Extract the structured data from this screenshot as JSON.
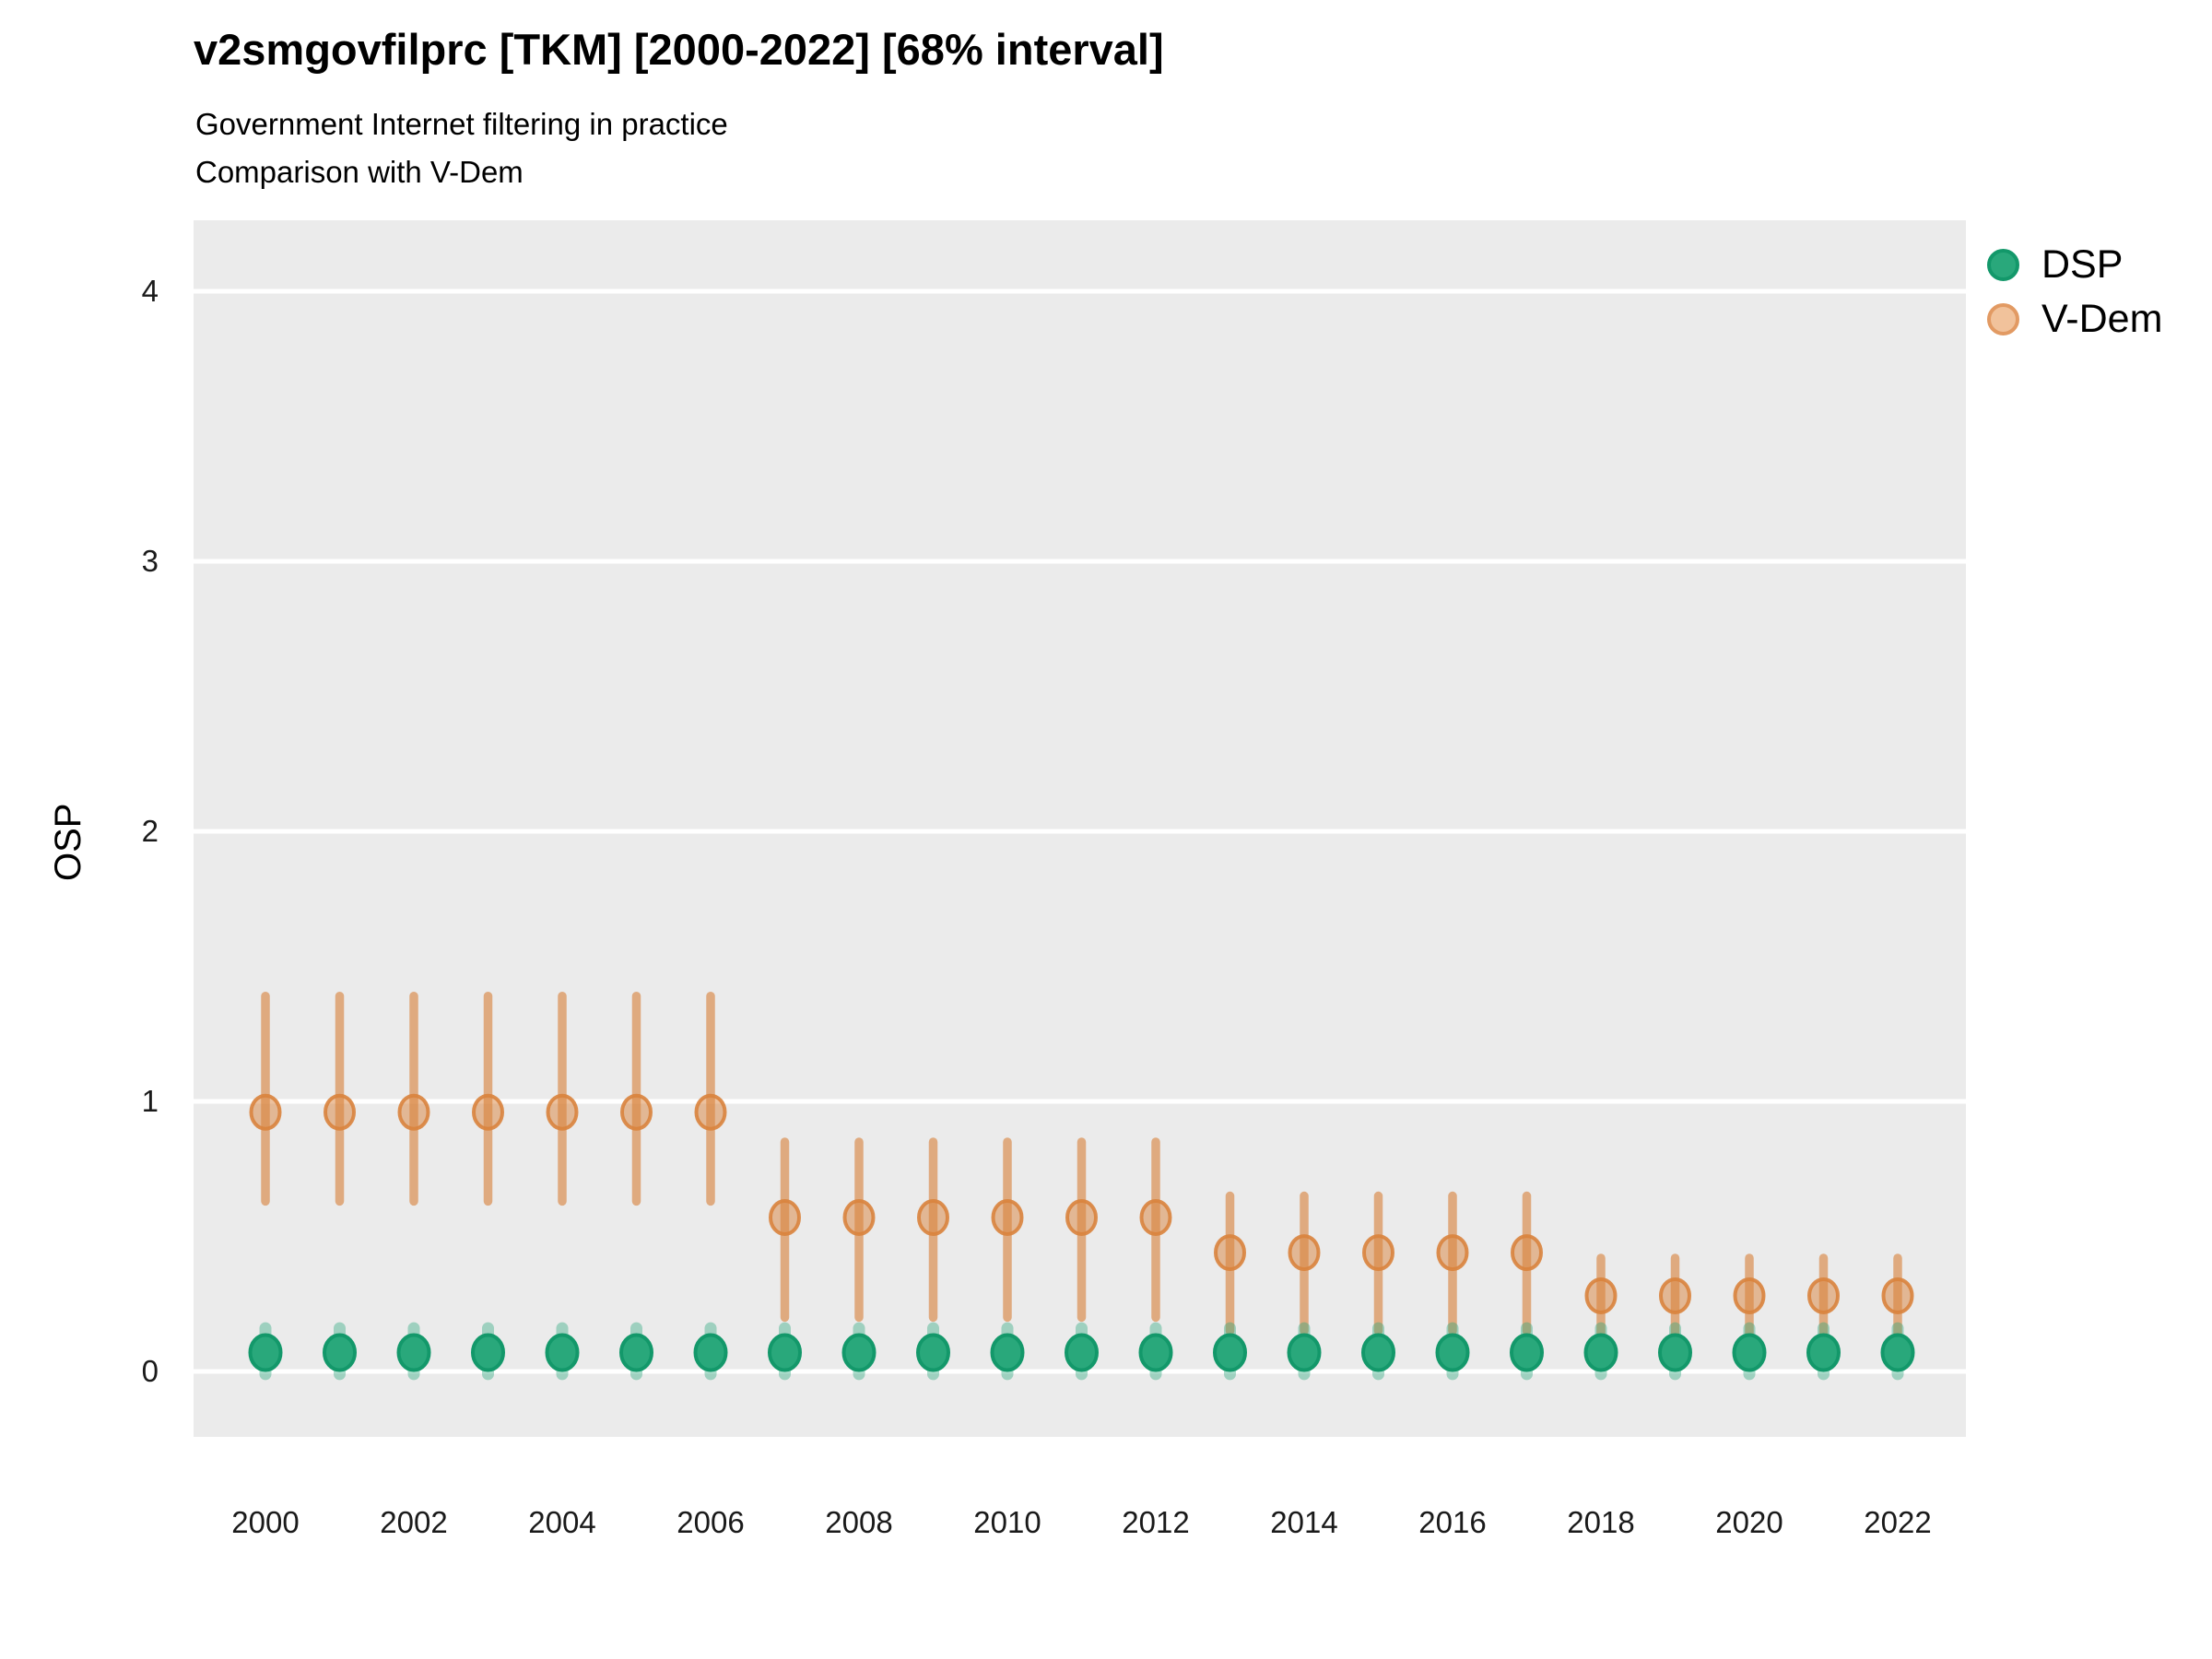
{
  "header": {
    "title": "v2smgovfilprc [TKM] [2000-2022] [68% interval]",
    "subtitle_line1": "Government Internet filtering in practice",
    "subtitle_line2": "Comparison with V-Dem"
  },
  "legend": {
    "position": "right-top",
    "items": [
      {
        "label": "DSP",
        "color": "#29a87b"
      },
      {
        "label": "V-Dem",
        "color": "#f1c29b"
      }
    ]
  },
  "colors": {
    "panel_bg": "#ebebeb",
    "grid": "#ffffff",
    "axis_text": "#1a1a1a",
    "dsp_fill": "#29a87b",
    "dsp_stroke": "#13986a",
    "dsp_interval": "rgba(42,168,124,0.40)",
    "vdem_fill": "rgba(217,131,61,0.50)",
    "vdem_stroke": "rgba(217,131,61,0.90)",
    "vdem_interval": "rgba(217,131,61,0.62)"
  },
  "chart_data": {
    "type": "scatter",
    "title": "v2smgovfilprc [TKM] [2000-2022] [68% interval]",
    "subtitle": [
      "Government Internet filtering in practice",
      "Comparison with V-Dem"
    ],
    "interval_level": "68%",
    "xlabel": "",
    "ylabel": "OSP",
    "x": [
      2000,
      2001,
      2002,
      2003,
      2004,
      2005,
      2006,
      2007,
      2008,
      2009,
      2010,
      2011,
      2012,
      2013,
      2014,
      2015,
      2016,
      2017,
      2018,
      2019,
      2020,
      2021,
      2022
    ],
    "xticks": [
      2000,
      2002,
      2004,
      2006,
      2008,
      2010,
      2012,
      2014,
      2016,
      2018,
      2020,
      2022
    ],
    "yticks": [
      0,
      1,
      2,
      3,
      4
    ],
    "ylim": [
      -0.24,
      4.26
    ],
    "grid": "horizontal-major",
    "legend_position": "right-top",
    "series": [
      {
        "name": "V-Dem",
        "est": [
          0.96,
          0.96,
          0.96,
          0.96,
          0.96,
          0.96,
          0.96,
          0.57,
          0.57,
          0.57,
          0.57,
          0.57,
          0.57,
          0.44,
          0.44,
          0.44,
          0.44,
          0.44,
          0.28,
          0.28,
          0.28,
          0.28,
          0.28
        ],
        "lo": [
          0.63,
          0.63,
          0.63,
          0.63,
          0.63,
          0.63,
          0.63,
          0.2,
          0.2,
          0.2,
          0.2,
          0.2,
          0.2,
          0.15,
          0.15,
          0.15,
          0.15,
          0.15,
          0.14,
          0.14,
          0.14,
          0.14,
          0.14
        ],
        "hi": [
          1.39,
          1.39,
          1.39,
          1.39,
          1.39,
          1.39,
          1.39,
          0.85,
          0.85,
          0.85,
          0.85,
          0.85,
          0.85,
          0.65,
          0.65,
          0.65,
          0.65,
          0.65,
          0.42,
          0.42,
          0.42,
          0.42,
          0.42
        ]
      },
      {
        "name": "DSP",
        "est": [
          0.07,
          0.07,
          0.07,
          0.07,
          0.07,
          0.07,
          0.07,
          0.07,
          0.07,
          0.07,
          0.07,
          0.07,
          0.07,
          0.07,
          0.07,
          0.07,
          0.07,
          0.07,
          0.07,
          0.07,
          0.07,
          0.07,
          0.07
        ],
        "lo": [
          -0.01,
          -0.01,
          -0.01,
          -0.01,
          -0.01,
          -0.01,
          -0.01,
          -0.01,
          -0.01,
          -0.01,
          -0.01,
          -0.01,
          -0.01,
          -0.01,
          -0.01,
          -0.01,
          -0.01,
          -0.01,
          -0.01,
          -0.01,
          -0.01,
          -0.01,
          -0.01
        ],
        "hi": [
          0.16,
          0.16,
          0.16,
          0.16,
          0.16,
          0.16,
          0.16,
          0.16,
          0.16,
          0.16,
          0.16,
          0.16,
          0.16,
          0.16,
          0.16,
          0.16,
          0.16,
          0.16,
          0.16,
          0.16,
          0.16,
          0.16,
          0.16
        ]
      }
    ]
  }
}
